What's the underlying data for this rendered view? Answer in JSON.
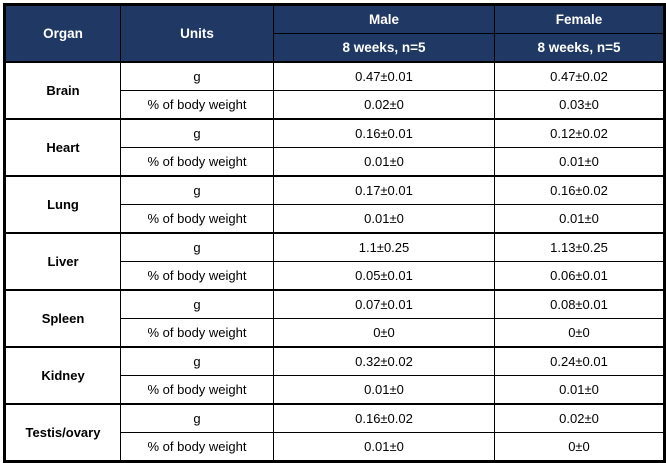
{
  "chart_data": {
    "type": "table",
    "header": {
      "organ": "Organ",
      "units": "Units",
      "male": {
        "label": "Male",
        "subheader": "8 weeks, n=5"
      },
      "female": {
        "label": "Female",
        "subheader": "8 weeks, n=5"
      }
    },
    "unit_labels": {
      "grams": "g",
      "percent": "% of body weight"
    },
    "rows": [
      {
        "organ": "Brain",
        "g_male": "0.47±0.01",
        "g_female": "0.47±0.02",
        "pct_male": "0.02±0",
        "pct_female": "0.03±0"
      },
      {
        "organ": "Heart",
        "g_male": "0.16±0.01",
        "g_female": "0.12±0.02",
        "pct_male": "0.01±0",
        "pct_female": "0.01±0"
      },
      {
        "organ": "Lung",
        "g_male": "0.17±0.01",
        "g_female": "0.16±0.02",
        "pct_male": "0.01±0",
        "pct_female": "0.01±0"
      },
      {
        "organ": "Liver",
        "g_male": "1.1±0.25",
        "g_female": "1.13±0.25",
        "pct_male": "0.05±0.01",
        "pct_female": "0.06±0.01"
      },
      {
        "organ": "Spleen",
        "g_male": "0.07±0.01",
        "g_female": "0.08±0.01",
        "pct_male": "0±0",
        "pct_female": "0±0"
      },
      {
        "organ": "Kidney",
        "g_male": "0.32±0.02",
        "g_female": "0.24±0.01",
        "pct_male": "0.01±0",
        "pct_female": "0.01±0"
      },
      {
        "organ": "Testis/ovary",
        "g_male": "0.16±0.02",
        "g_female": "0.02±0",
        "pct_male": "0.01±0",
        "pct_female": "0±0"
      }
    ],
    "colors": {
      "header_bg": "#1f3864",
      "header_text": "#ffffff",
      "body_bg": "#ffffff",
      "border": "#000000"
    }
  }
}
